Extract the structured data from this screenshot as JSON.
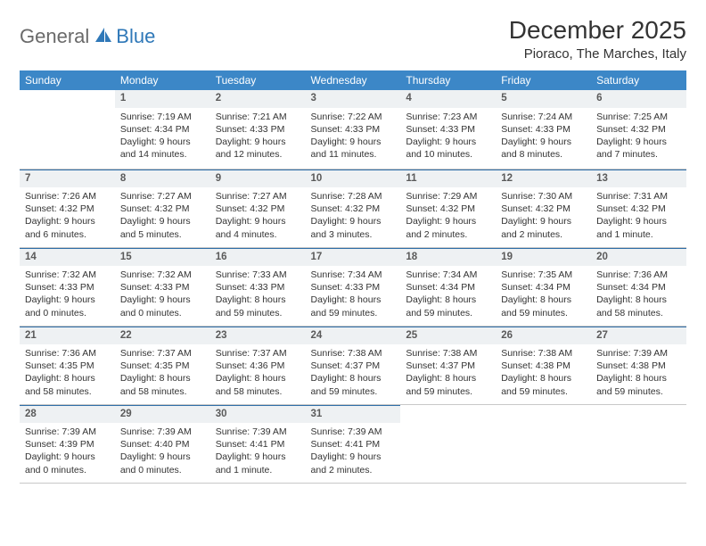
{
  "logo": {
    "part1": "General",
    "part2": "Blue"
  },
  "title": "December 2025",
  "location": "Pioraco, The Marches, Italy",
  "header_bg": "#3c87c7",
  "daynum_bg": "#eef1f3",
  "weekdays": [
    "Sunday",
    "Monday",
    "Tuesday",
    "Wednesday",
    "Thursday",
    "Friday",
    "Saturday"
  ],
  "weeks": [
    [
      null,
      {
        "n": "1",
        "sr": "7:19 AM",
        "ss": "4:34 PM",
        "dl": "9 hours and 14 minutes."
      },
      {
        "n": "2",
        "sr": "7:21 AM",
        "ss": "4:33 PM",
        "dl": "9 hours and 12 minutes."
      },
      {
        "n": "3",
        "sr": "7:22 AM",
        "ss": "4:33 PM",
        "dl": "9 hours and 11 minutes."
      },
      {
        "n": "4",
        "sr": "7:23 AM",
        "ss": "4:33 PM",
        "dl": "9 hours and 10 minutes."
      },
      {
        "n": "5",
        "sr": "7:24 AM",
        "ss": "4:33 PM",
        "dl": "9 hours and 8 minutes."
      },
      {
        "n": "6",
        "sr": "7:25 AM",
        "ss": "4:32 PM",
        "dl": "9 hours and 7 minutes."
      }
    ],
    [
      {
        "n": "7",
        "sr": "7:26 AM",
        "ss": "4:32 PM",
        "dl": "9 hours and 6 minutes."
      },
      {
        "n": "8",
        "sr": "7:27 AM",
        "ss": "4:32 PM",
        "dl": "9 hours and 5 minutes."
      },
      {
        "n": "9",
        "sr": "7:27 AM",
        "ss": "4:32 PM",
        "dl": "9 hours and 4 minutes."
      },
      {
        "n": "10",
        "sr": "7:28 AM",
        "ss": "4:32 PM",
        "dl": "9 hours and 3 minutes."
      },
      {
        "n": "11",
        "sr": "7:29 AM",
        "ss": "4:32 PM",
        "dl": "9 hours and 2 minutes."
      },
      {
        "n": "12",
        "sr": "7:30 AM",
        "ss": "4:32 PM",
        "dl": "9 hours and 2 minutes."
      },
      {
        "n": "13",
        "sr": "7:31 AM",
        "ss": "4:32 PM",
        "dl": "9 hours and 1 minute."
      }
    ],
    [
      {
        "n": "14",
        "sr": "7:32 AM",
        "ss": "4:33 PM",
        "dl": "9 hours and 0 minutes."
      },
      {
        "n": "15",
        "sr": "7:32 AM",
        "ss": "4:33 PM",
        "dl": "9 hours and 0 minutes."
      },
      {
        "n": "16",
        "sr": "7:33 AM",
        "ss": "4:33 PM",
        "dl": "8 hours and 59 minutes."
      },
      {
        "n": "17",
        "sr": "7:34 AM",
        "ss": "4:33 PM",
        "dl": "8 hours and 59 minutes."
      },
      {
        "n": "18",
        "sr": "7:34 AM",
        "ss": "4:34 PM",
        "dl": "8 hours and 59 minutes."
      },
      {
        "n": "19",
        "sr": "7:35 AM",
        "ss": "4:34 PM",
        "dl": "8 hours and 59 minutes."
      },
      {
        "n": "20",
        "sr": "7:36 AM",
        "ss": "4:34 PM",
        "dl": "8 hours and 58 minutes."
      }
    ],
    [
      {
        "n": "21",
        "sr": "7:36 AM",
        "ss": "4:35 PM",
        "dl": "8 hours and 58 minutes."
      },
      {
        "n": "22",
        "sr": "7:37 AM",
        "ss": "4:35 PM",
        "dl": "8 hours and 58 minutes."
      },
      {
        "n": "23",
        "sr": "7:37 AM",
        "ss": "4:36 PM",
        "dl": "8 hours and 58 minutes."
      },
      {
        "n": "24",
        "sr": "7:38 AM",
        "ss": "4:37 PM",
        "dl": "8 hours and 59 minutes."
      },
      {
        "n": "25",
        "sr": "7:38 AM",
        "ss": "4:37 PM",
        "dl": "8 hours and 59 minutes."
      },
      {
        "n": "26",
        "sr": "7:38 AM",
        "ss": "4:38 PM",
        "dl": "8 hours and 59 minutes."
      },
      {
        "n": "27",
        "sr": "7:39 AM",
        "ss": "4:38 PM",
        "dl": "8 hours and 59 minutes."
      }
    ],
    [
      {
        "n": "28",
        "sr": "7:39 AM",
        "ss": "4:39 PM",
        "dl": "9 hours and 0 minutes."
      },
      {
        "n": "29",
        "sr": "7:39 AM",
        "ss": "4:40 PM",
        "dl": "9 hours and 0 minutes."
      },
      {
        "n": "30",
        "sr": "7:39 AM",
        "ss": "4:41 PM",
        "dl": "9 hours and 1 minute."
      },
      {
        "n": "31",
        "sr": "7:39 AM",
        "ss": "4:41 PM",
        "dl": "9 hours and 2 minutes."
      },
      null,
      null,
      null
    ]
  ],
  "labels": {
    "sunrise": "Sunrise:",
    "sunset": "Sunset:",
    "daylight": "Daylight:"
  }
}
